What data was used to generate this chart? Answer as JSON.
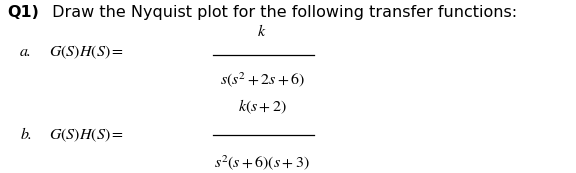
{
  "background_color": "#ffffff",
  "title_bold": "Q1)",
  "title_normal": " Draw the Nyquist plot for the following transfer functions:",
  "title_fontsize": 11.5,
  "math_fontsize": 11.5,
  "label_fontsize": 11.5,
  "part_a_label": "a.",
  "part_b_label": "b.",
  "part_a_eq": "$G(S)H(S)=$",
  "part_a_num": "$k$",
  "part_a_den": "$s(s^{2}+2s+6)$",
  "part_b_eq": "$G(S)H(S)=$",
  "part_b_num": "$k(s+2)$",
  "part_b_den": "$s^{2}(s+6)(s+3)$",
  "fig_width": 5.76,
  "fig_height": 1.73,
  "dpi": 100
}
